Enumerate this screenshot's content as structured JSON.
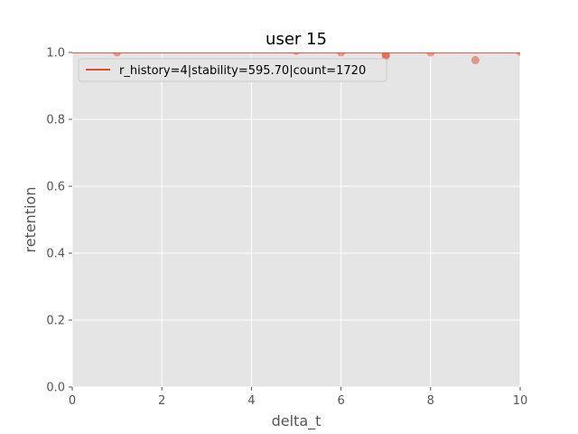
{
  "chart_data": {
    "type": "scatter",
    "title": "user 15",
    "xlabel": "delta_t",
    "ylabel": "retention",
    "xlim": [
      0,
      10
    ],
    "ylim": [
      0,
      1.0
    ],
    "xticks": [
      "0",
      "2",
      "4",
      "6",
      "8",
      "10"
    ],
    "yticks": [
      "0.0",
      "0.2",
      "0.4",
      "0.6",
      "0.8",
      "1.0"
    ],
    "grid": true,
    "legend_position": "top-left",
    "series": [
      {
        "name": "r_history=4|stability=595.70|count=1720",
        "kind": "line",
        "color": "#e24a33",
        "x": [
          0,
          10
        ],
        "y": [
          1.0,
          0.9999
        ]
      },
      {
        "kind": "scatter",
        "color": "#e24a33",
        "x": [
          1,
          5,
          6,
          7,
          7,
          8,
          9,
          10
        ],
        "y": [
          1.0,
          1.005,
          1.0,
          0.993,
          0.99,
          1.0,
          0.977,
          1.002
        ]
      }
    ],
    "colors": {
      "plot_background": "#e5e5e5",
      "grid": "#ffffff",
      "text": "#555555"
    }
  }
}
